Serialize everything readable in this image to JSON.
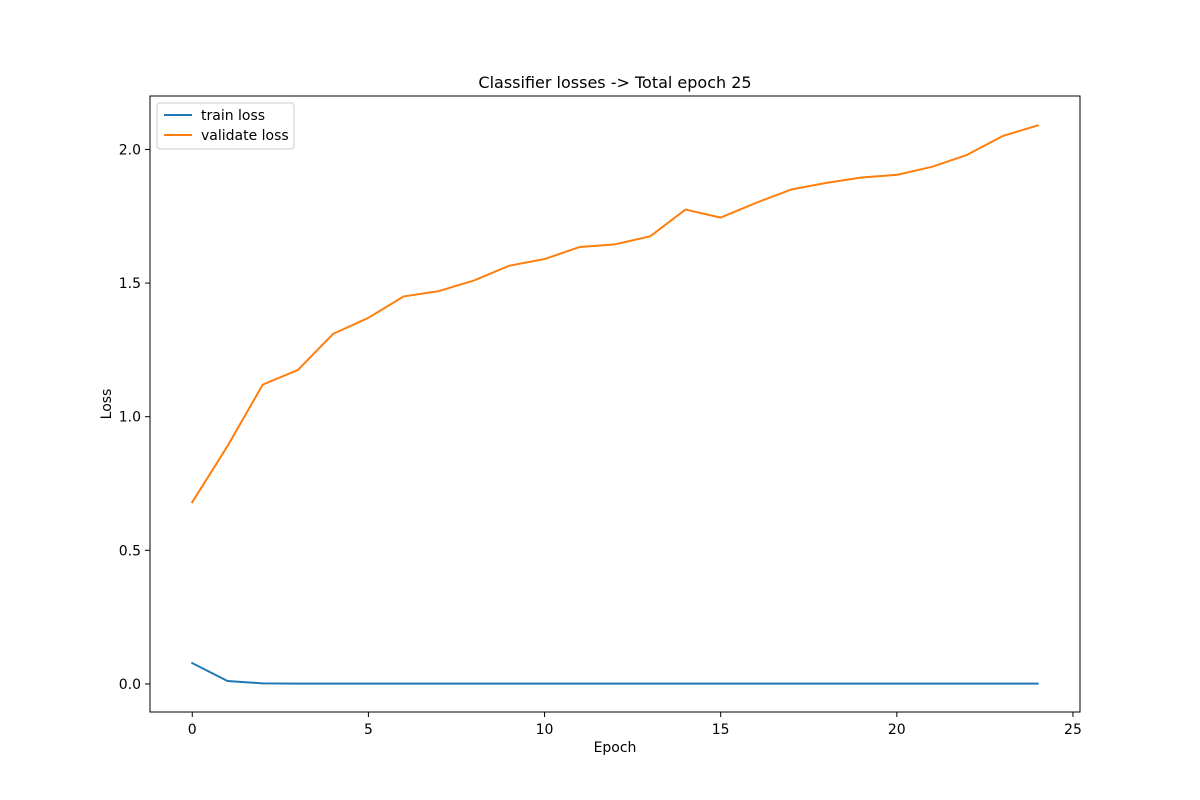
{
  "chart_data": {
    "type": "line",
    "title": "Classifier losses -> Total epoch 25",
    "xlabel": "Epoch",
    "ylabel": "Loss",
    "xlim": [
      -1.2,
      25.2
    ],
    "ylim": [
      -0.105,
      2.2
    ],
    "xticks": [
      0,
      5,
      10,
      15,
      20,
      25
    ],
    "xtick_labels": [
      "0",
      "5",
      "10",
      "15",
      "20",
      "25"
    ],
    "yticks": [
      0.0,
      0.5,
      1.0,
      1.5,
      2.0
    ],
    "ytick_labels": [
      "0.0",
      "0.5",
      "1.0",
      "1.5",
      "2.0"
    ],
    "grid": false,
    "legend_position": "top-left",
    "x": [
      0,
      1,
      2,
      3,
      4,
      5,
      6,
      7,
      8,
      9,
      10,
      11,
      12,
      13,
      14,
      15,
      16,
      17,
      18,
      19,
      20,
      21,
      22,
      23,
      24
    ],
    "series": [
      {
        "name": "train loss",
        "color": "#1f77b4",
        "values": [
          0.078,
          0.011,
          0.002,
          0.001,
          0.001,
          0.001,
          0.001,
          0.001,
          0.001,
          0.001,
          0.001,
          0.001,
          0.001,
          0.001,
          0.001,
          0.001,
          0.001,
          0.001,
          0.001,
          0.001,
          0.001,
          0.001,
          0.001,
          0.001,
          0.001
        ]
      },
      {
        "name": "validate loss",
        "color": "#ff7f0e",
        "values": [
          0.68,
          0.89,
          1.12,
          1.175,
          1.31,
          1.37,
          1.45,
          1.47,
          1.51,
          1.565,
          1.59,
          1.635,
          1.645,
          1.675,
          1.775,
          1.745,
          1.8,
          1.85,
          1.875,
          1.895,
          1.905,
          1.935,
          1.98,
          2.05,
          2.09
        ]
      }
    ]
  }
}
